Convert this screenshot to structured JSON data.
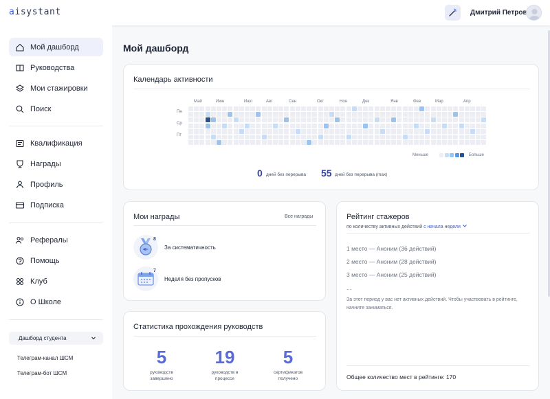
{
  "header": {
    "logo_prefix": "a",
    "logo_rest": "isystant",
    "user_name": "Дмитрий Петров"
  },
  "sidebar": {
    "items": [
      {
        "label": "Мой дашборд",
        "icon": "home-icon",
        "active": true
      },
      {
        "label": "Руководства",
        "icon": "book-icon"
      },
      {
        "label": "Мои стажировки",
        "icon": "layers-icon"
      },
      {
        "label": "Поиск",
        "icon": "search-icon"
      },
      {
        "label": "Квалификация",
        "icon": "certificate-icon"
      },
      {
        "label": "Награды",
        "icon": "award-icon"
      },
      {
        "label": "Профиль",
        "icon": "user-icon"
      },
      {
        "label": "Подписка",
        "icon": "card-icon"
      },
      {
        "label": "Рефералы",
        "icon": "users-icon"
      },
      {
        "label": "Помощь",
        "icon": "help-icon"
      },
      {
        "label": "Клуб",
        "icon": "club-icon"
      },
      {
        "label": "О Школе",
        "icon": "info-icon"
      }
    ],
    "dashboard_select": "Дашборд студента",
    "links": [
      "Телеграм-канал ШСМ",
      "Телеграм-бот ШСМ"
    ]
  },
  "main": {
    "page_title": "Мой дашборд"
  },
  "calendar": {
    "title": "Календарь активности",
    "months": [
      "Май",
      "Июн",
      "Июл",
      "Авг",
      "Сен",
      "Окт",
      "Ноя",
      "Дек",
      "Янв",
      "Фев",
      "Мар",
      "Апр"
    ],
    "days": [
      "Пн",
      "Ср",
      "Пт"
    ],
    "legend_less": "Меньше",
    "legend_more": "Больше",
    "streak_current": "0",
    "streak_current_label": "дней без перерыва",
    "streak_max": "55",
    "streak_max_label": "дней без перерыва (max)"
  },
  "awards": {
    "title": "Мои награды",
    "all_link": "Все награды",
    "items": [
      {
        "count": "8",
        "name": "За систематичность"
      },
      {
        "count": "7",
        "name": "Неделя без пропусков"
      }
    ]
  },
  "stats": {
    "title": "Статистика прохождения руководств",
    "items": [
      {
        "value": "5",
        "label_1": "руководств",
        "label_2": "завершено"
      },
      {
        "value": "19",
        "label_1": "руководств в",
        "label_2": "процессе"
      },
      {
        "value": "5",
        "label_1": "сертификатов",
        "label_2": "получено"
      }
    ]
  },
  "rating": {
    "title": "Рейтинг стажеров",
    "subtitle": "по количеству активных действий",
    "period": "с начала недели",
    "rows": [
      "1 место — Аноним (36 действий)",
      "2 место — Аноним (28 действий)",
      "3 место — Аноним (25 действий)",
      "..."
    ],
    "note": "За этот период у вас нет активных действий. Чтобы участвовать в рейтинге, начните заниматься.",
    "total": "Общее количество мест в рейтинге: 170"
  },
  "colors": {
    "accent": "#3d5ad8",
    "cell_empty": "#eceef3",
    "cell_l1": "#c9dcf5",
    "cell_l2": "#9cc3ee",
    "cell_l3": "#5a97dc",
    "cell_l4": "#24518f"
  }
}
